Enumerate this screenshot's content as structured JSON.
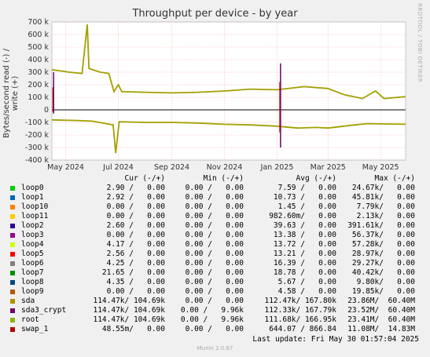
{
  "chart_data": {
    "type": "line",
    "title": "Throughput per device - by year",
    "ylabel": "Bytes/second read (-) / write (+)",
    "ylim": [
      -400000,
      700000
    ],
    "yticks": [
      {
        "v": 700000,
        "label": "700 k"
      },
      {
        "v": 600000,
        "label": "600 k"
      },
      {
        "v": 500000,
        "label": "500 k"
      },
      {
        "v": 400000,
        "label": "400 k"
      },
      {
        "v": 300000,
        "label": "300 k"
      },
      {
        "v": 200000,
        "label": "200 k"
      },
      {
        "v": 100000,
        "label": "100 k"
      },
      {
        "v": 0,
        "label": "0"
      },
      {
        "v": -100000,
        "label": "-100 k"
      },
      {
        "v": -200000,
        "label": "-200 k"
      },
      {
        "v": -300000,
        "label": "-300 k"
      },
      {
        "v": -400000,
        "label": "-400 k"
      }
    ],
    "xlim": [
      "2024-04-15",
      "2025-05-30"
    ],
    "xticks": [
      {
        "date": "2024-05-01",
        "label": "May 2024"
      },
      {
        "date": "2024-07-01",
        "label": "Jul 2024"
      },
      {
        "date": "2024-09-01",
        "label": "Sep 2024"
      },
      {
        "date": "2024-11-01",
        "label": "Nov 2024"
      },
      {
        "date": "2025-01-01",
        "label": "Jan 2025"
      },
      {
        "date": "2025-03-01",
        "label": "Mar 2025"
      },
      {
        "date": "2025-05-01",
        "label": "May 2025"
      }
    ],
    "grid": true,
    "write_series": [
      {
        "date": "2024-04-15",
        "value": 320000
      },
      {
        "date": "2024-04-25",
        "value": 310000
      },
      {
        "date": "2024-05-05",
        "value": 300000
      },
      {
        "date": "2024-05-20",
        "value": 290000
      },
      {
        "date": "2024-05-26",
        "value": 680000
      },
      {
        "date": "2024-05-28",
        "value": 330000
      },
      {
        "date": "2024-06-10",
        "value": 300000
      },
      {
        "date": "2024-06-20",
        "value": 290000
      },
      {
        "date": "2024-06-26",
        "value": 145000
      },
      {
        "date": "2024-07-01",
        "value": 200000
      },
      {
        "date": "2024-07-05",
        "value": 145000
      },
      {
        "date": "2024-08-01",
        "value": 140000
      },
      {
        "date": "2024-09-01",
        "value": 135000
      },
      {
        "date": "2024-10-01",
        "value": 140000
      },
      {
        "date": "2024-11-01",
        "value": 150000
      },
      {
        "date": "2024-12-01",
        "value": 165000
      },
      {
        "date": "2025-01-01",
        "value": 160000
      },
      {
        "date": "2025-01-20",
        "value": 175000
      },
      {
        "date": "2025-02-01",
        "value": 185000
      },
      {
        "date": "2025-03-01",
        "value": 170000
      },
      {
        "date": "2025-03-20",
        "value": 120000
      },
      {
        "date": "2025-04-10",
        "value": 90000
      },
      {
        "date": "2025-04-25",
        "value": 150000
      },
      {
        "date": "2025-05-05",
        "value": 90000
      },
      {
        "date": "2025-05-30",
        "value": 105000
      }
    ],
    "read_series": [
      {
        "date": "2024-04-15",
        "value": -80000
      },
      {
        "date": "2024-05-15",
        "value": -85000
      },
      {
        "date": "2024-06-01",
        "value": -90000
      },
      {
        "date": "2024-06-25",
        "value": -120000
      },
      {
        "date": "2024-06-28",
        "value": -345000
      },
      {
        "date": "2024-07-02",
        "value": -95000
      },
      {
        "date": "2024-08-01",
        "value": -100000
      },
      {
        "date": "2024-09-01",
        "value": -100000
      },
      {
        "date": "2024-10-01",
        "value": -105000
      },
      {
        "date": "2024-11-01",
        "value": -115000
      },
      {
        "date": "2024-12-01",
        "value": -120000
      },
      {
        "date": "2025-01-01",
        "value": -130000
      },
      {
        "date": "2025-01-25",
        "value": -145000
      },
      {
        "date": "2025-02-15",
        "value": -140000
      },
      {
        "date": "2025-03-01",
        "value": -145000
      },
      {
        "date": "2025-04-01",
        "value": -120000
      },
      {
        "date": "2025-04-15",
        "value": -110000
      },
      {
        "date": "2025-05-30",
        "value": -115000
      }
    ],
    "spike_series": [
      {
        "date": "2024-04-17",
        "write": 300000,
        "read": -30000
      },
      {
        "date": "2025-01-05",
        "write": 370000,
        "read": -300000
      }
    ]
  },
  "side_label": "RRDTOOL / TOBI OETIKER",
  "legend": {
    "headers": {
      "cur": "Cur (-/+)",
      "min": "Min (-/+)",
      "avg": "Avg (-/+)",
      "max": "Max (-/+)"
    },
    "rows": [
      {
        "name": "loop0",
        "color": "#00cc00",
        "cur": "2.90 /   0.00",
        "min": "0.00 /   0.00",
        "avg": "7.59 /   0.00",
        "max": "24.67k/   0.00"
      },
      {
        "name": "loop1",
        "color": "#0066b3",
        "cur": "2.92 /   0.00",
        "min": "0.00 /   0.00",
        "avg": "10.73 /   0.00",
        "max": "45.81k/   0.00"
      },
      {
        "name": "loop10",
        "color": "#ff8000",
        "cur": "0.00 /   0.00",
        "min": "0.00 /   0.00",
        "avg": "1.45 /   0.00",
        "max": "7.79k/   0.00"
      },
      {
        "name": "loop11",
        "color": "#ffcc00",
        "cur": "0.00 /   0.00",
        "min": "0.00 /   0.00",
        "avg": "982.60m/   0.00",
        "max": "2.13k/   0.00"
      },
      {
        "name": "loop2",
        "color": "#330099",
        "cur": "2.60 /   0.00",
        "min": "0.00 /   0.00",
        "avg": "39.63 /   0.00",
        "max": "391.61k/   0.00"
      },
      {
        "name": "loop3",
        "color": "#990099",
        "cur": "0.00 /   0.00",
        "min": "0.00 /   0.00",
        "avg": "13.38 /   0.00",
        "max": "56.37k/   0.00"
      },
      {
        "name": "loop4",
        "color": "#ccff00",
        "cur": "4.17 /   0.00",
        "min": "0.00 /   0.00",
        "avg": "13.72 /   0.00",
        "max": "57.28k/   0.00"
      },
      {
        "name": "loop5",
        "color": "#ff0000",
        "cur": "2.56 /   0.00",
        "min": "0.00 /   0.00",
        "avg": "13.21 /   0.00",
        "max": "28.97k/   0.00"
      },
      {
        "name": "loop6",
        "color": "#808080",
        "cur": "4.25 /   0.00",
        "min": "0.00 /   0.00",
        "avg": "16.39 /   0.00",
        "max": "29.27k/   0.00"
      },
      {
        "name": "loop7",
        "color": "#008f00",
        "cur": "21.65 /   0.00",
        "min": "0.00 /   0.00",
        "avg": "18.78 /   0.00",
        "max": "40.42k/   0.00"
      },
      {
        "name": "loop8",
        "color": "#00487d",
        "cur": "4.35 /   0.00",
        "min": "0.00 /   0.00",
        "avg": "5.67 /   0.00",
        "max": "9.80k/   0.00"
      },
      {
        "name": "loop9",
        "color": "#b35a00",
        "cur": "0.00 /   0.00",
        "min": "0.00 /   0.00",
        "avg": "4.58 /   0.00",
        "max": "19.85k/   0.00"
      },
      {
        "name": "sda",
        "color": "#b38f00",
        "cur": "114.47k/ 104.69k",
        "min": "0.00 /   0.00",
        "avg": "112.47k/ 167.80k",
        "max": "23.86M/  60.40M"
      },
      {
        "name": "sda3_crypt",
        "color": "#6b006b",
        "cur": "114.47k/ 104.69k",
        "min": "0.00 /   9.96k",
        "avg": "112.33k/ 167.79k",
        "max": "23.52M/  60.40M"
      },
      {
        "name": "root",
        "color": "#8fb300",
        "cur": "114.47k/ 104.69k",
        "min": "0.00 /   9.96k",
        "avg": "111.68k/ 166.95k",
        "max": "23.41M/  60.40M"
      },
      {
        "name": "swap_1",
        "color": "#b30000",
        "cur": "48.55m/   0.00",
        "min": "0.00 /   0.00",
        "avg": "644.07 / 866.84",
        "max": "11.08M/  14.83M"
      }
    ]
  },
  "last_update": "Last update: Fri May 30 01:57:04 2025",
  "footer": "Munin 2.0.67",
  "colors": {
    "root": "#8fb300",
    "sda": "#b38f00",
    "crypt": "#6b006b",
    "swap": "#b30000",
    "grid": "#ffaaaa"
  }
}
